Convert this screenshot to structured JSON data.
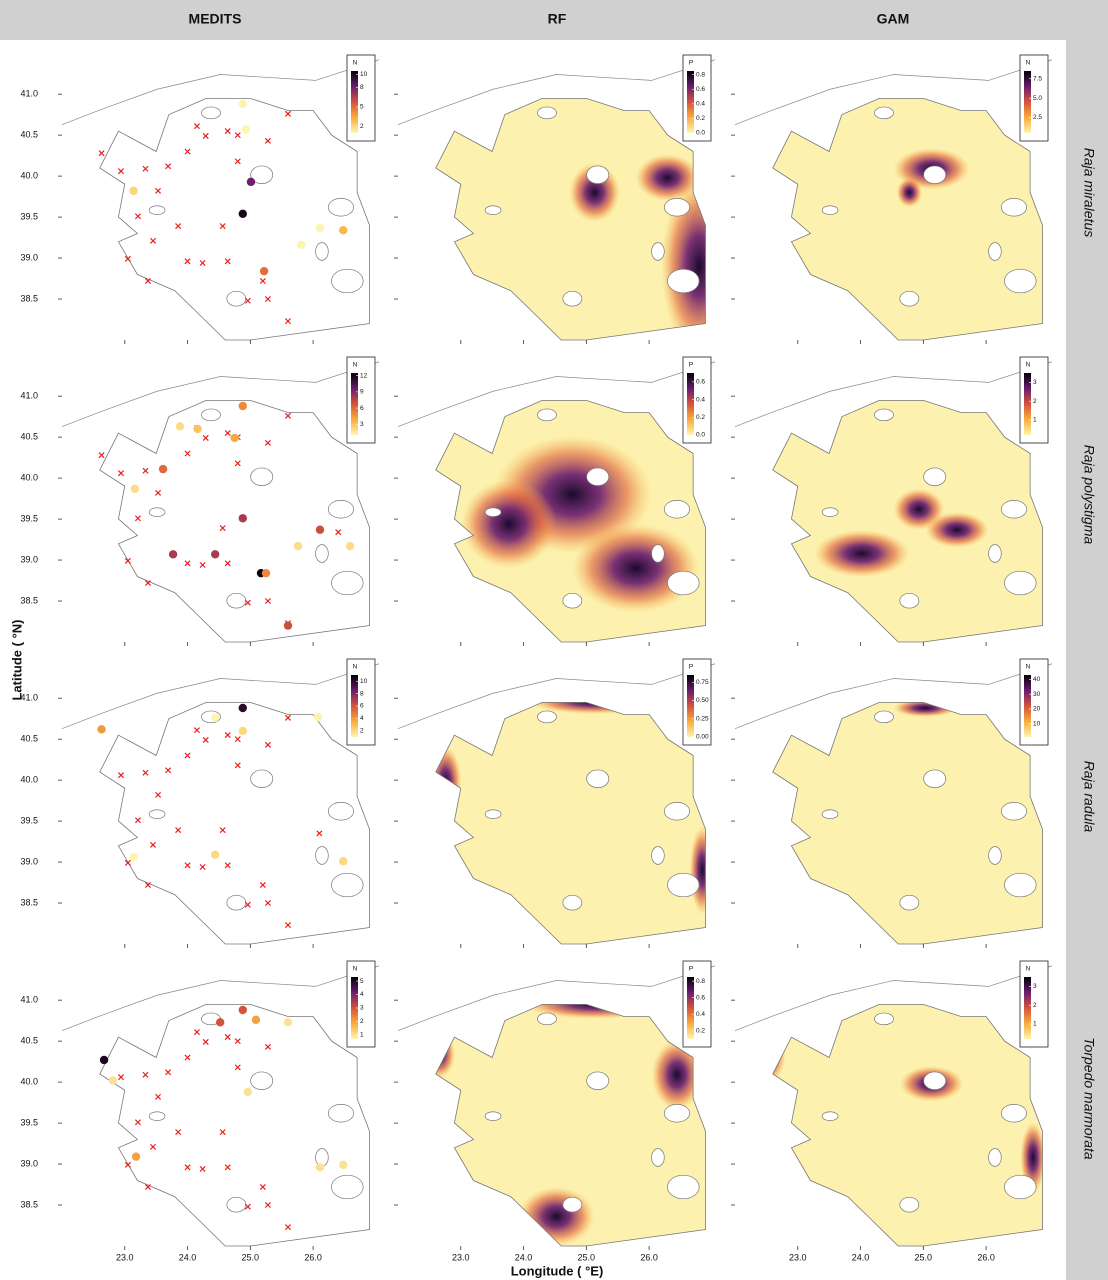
{
  "columns": [
    "MEDITS",
    "RF",
    "GAM"
  ],
  "x_label": "Longitude ( °E)",
  "y_label": "Latitude ( °N)",
  "xlim": [
    22.0,
    27.05
  ],
  "xticks": [
    {
      "value": 23,
      "label": "23.0"
    },
    {
      "value": 24,
      "label": "24.0"
    },
    {
      "value": 25,
      "label": "25.0"
    },
    {
      "value": 26,
      "label": "26.0"
    }
  ],
  "ylim": [
    38.0,
    41.6
  ],
  "yticks": [
    38.5,
    {
      "value": 39,
      "label": "39.0"
    },
    39.5,
    {
      "value": 40,
      "label": "40.0"
    },
    40.5,
    {
      "value": 41,
      "label": "41.0"
    }
  ],
  "palette": [
    "#fcf5b0",
    "#f9ac3c",
    "#d5533c",
    "#6a1c6e",
    "#000004"
  ],
  "absence_color": "#e8201b",
  "rows": [
    {
      "species": "Raja miraletus",
      "medits": {
        "legend": {
          "title": "N",
          "lim": [
            1,
            10.5
          ],
          "ticks": [
            2,
            5,
            8,
            10
          ]
        },
        "presence": {
          "lon": [
            24.88,
            25.01,
            25.22,
            24.88,
            24.93,
            25.81,
            26.11,
            26.48,
            23.14
          ],
          "lat": [
            39.54,
            39.93,
            38.84,
            40.88,
            40.57,
            39.16,
            39.37,
            39.34,
            39.82
          ],
          "n": [
            10,
            8,
            5,
            1,
            1,
            1,
            1,
            3,
            2
          ]
        },
        "absence": {
          "lon": [
            22.63,
            22.94,
            23.33,
            23.69,
            24.0,
            24.15,
            24.29,
            24.64,
            24.8,
            25.28,
            25.6,
            24.8,
            23.53,
            23.21,
            23.45,
            23.05,
            24.0,
            24.24,
            24.64,
            24.96,
            25.28,
            25.6,
            25.2,
            24.56,
            23.85,
            23.37
          ],
          "lat": [
            40.28,
            40.06,
            40.09,
            40.12,
            40.3,
            40.61,
            40.49,
            40.55,
            40.5,
            40.43,
            40.76,
            40.18,
            39.82,
            39.51,
            39.21,
            38.99,
            38.96,
            38.94,
            38.96,
            38.48,
            38.5,
            38.23,
            38.72,
            39.39,
            39.39,
            38.72
          ]
        }
      },
      "rf": {
        "legend": {
          "title": "P",
          "lim": [
            0,
            0.85
          ],
          "ticks": [
            {
              "value": 0,
              "label": "0.0"
            },
            0.2,
            0.4,
            0.6,
            0.8
          ]
        }
      },
      "gam": {
        "legend": {
          "title": "N",
          "lim": [
            0.5,
            8.5
          ],
          "ticks": [
            2.5,
            {
              "value": 5,
              "label": "5.0"
            },
            7.5
          ]
        }
      }
    },
    {
      "species": "Raja polystigma",
      "medits": {
        "legend": {
          "title": "N",
          "lim": [
            1,
            12.5
          ],
          "ticks": [
            3,
            6,
            9,
            12
          ]
        },
        "presence": {
          "lon": [
            24.88,
            23.88,
            24.16,
            24.75,
            23.61,
            24.88,
            26.11,
            23.77,
            24.44,
            25.17,
            25.25,
            25.6,
            25.76,
            26.59,
            23.16
          ],
          "lat": [
            40.88,
            40.63,
            40.6,
            40.49,
            40.11,
            39.51,
            39.37,
            39.07,
            39.07,
            38.84,
            38.84,
            38.2,
            39.17,
            39.17,
            39.87
          ],
          "n": [
            5,
            2,
            3,
            4,
            6,
            8,
            7,
            8,
            8,
            12,
            5,
            7,
            2,
            2,
            2
          ]
        },
        "absence": {
          "lon": [
            22.63,
            22.94,
            23.33,
            24.0,
            24.15,
            24.29,
            24.64,
            24.8,
            25.28,
            25.6,
            24.8,
            23.53,
            23.21,
            23.05,
            24.0,
            24.24,
            24.64,
            24.96,
            25.28,
            25.6,
            24.56,
            23.37,
            26.4
          ],
          "lat": [
            40.28,
            40.06,
            40.09,
            40.3,
            40.61,
            40.49,
            40.55,
            40.5,
            40.43,
            40.76,
            40.18,
            39.82,
            39.51,
            38.99,
            38.96,
            38.94,
            38.96,
            38.48,
            38.5,
            38.23,
            39.39,
            38.72,
            39.34
          ]
        }
      },
      "rf": {
        "legend": {
          "title": "P",
          "lim": [
            0,
            0.7
          ],
          "ticks": [
            {
              "value": 0,
              "label": "0.0"
            },
            0.2,
            0.4,
            0.6
          ]
        }
      },
      "gam": {
        "legend": {
          "title": "N",
          "lim": [
            0.2,
            3.5
          ],
          "ticks": [
            1,
            2,
            3
          ]
        }
      }
    },
    {
      "species": "Raja radula",
      "medits": {
        "legend": {
          "title": "N",
          "lim": [
            1,
            11
          ],
          "ticks": [
            2,
            4,
            6,
            8,
            10
          ]
        },
        "presence": {
          "lon": [
            24.88,
            22.63,
            26.08,
            24.88,
            24.44,
            26.48,
            24.44,
            23.14
          ],
          "lat": [
            40.88,
            40.62,
            40.77,
            40.6,
            40.76,
            39.01,
            39.09,
            39.06
          ],
          "n": [
            10,
            4,
            1,
            2,
            1,
            2,
            2,
            1
          ]
        },
        "absence": {
          "lon": [
            22.94,
            23.33,
            23.69,
            24.0,
            24.15,
            24.29,
            24.64,
            24.8,
            25.28,
            25.6,
            24.8,
            23.53,
            23.21,
            23.45,
            23.05,
            24.0,
            24.24,
            24.64,
            24.96,
            25.28,
            25.6,
            25.2,
            24.56,
            23.85,
            23.37,
            26.1
          ],
          "lat": [
            40.06,
            40.09,
            40.12,
            40.3,
            40.61,
            40.49,
            40.55,
            40.5,
            40.43,
            40.76,
            40.18,
            39.82,
            39.51,
            39.21,
            38.99,
            38.96,
            38.94,
            38.96,
            38.48,
            38.5,
            38.23,
            38.72,
            39.39,
            39.39,
            38.72,
            39.35
          ]
        }
      },
      "rf": {
        "legend": {
          "title": "P",
          "lim": [
            0,
            0.85
          ],
          "ticks": [
            {
              "value": 0,
              "label": "0.00"
            },
            0.25,
            {
              "value": 0.5,
              "label": "0.50"
            },
            0.75
          ]
        }
      },
      "gam": {
        "legend": {
          "title": "N",
          "lim": [
            1,
            43
          ],
          "ticks": [
            10,
            20,
            30,
            40
          ]
        }
      }
    },
    {
      "species": "Torpedo marmorata",
      "medits": {
        "legend": {
          "title": "N",
          "lim": [
            0.7,
            5.3
          ],
          "ticks": [
            1,
            2,
            3,
            4,
            5
          ]
        },
        "presence": {
          "lon": [
            22.67,
            24.88,
            24.52,
            25.09,
            25.6,
            22.81,
            24.96,
            26.11,
            26.48,
            23.18
          ],
          "lat": [
            40.27,
            40.88,
            40.73,
            40.76,
            40.73,
            40.02,
            39.88,
            38.96,
            38.99,
            39.09
          ],
          "n": [
            5,
            3,
            3,
            2,
            1,
            1,
            1,
            1,
            1,
            2
          ]
        },
        "absence": {
          "lon": [
            22.94,
            23.33,
            23.69,
            24.0,
            24.15,
            24.29,
            24.64,
            24.8,
            25.28,
            24.8,
            23.53,
            23.21,
            23.45,
            23.05,
            24.0,
            24.24,
            24.64,
            24.96,
            25.28,
            25.6,
            25.2,
            24.56,
            23.85,
            23.37
          ],
          "lat": [
            40.06,
            40.09,
            40.12,
            40.3,
            40.61,
            40.49,
            40.55,
            40.5,
            40.43,
            40.18,
            39.82,
            39.51,
            39.21,
            38.99,
            38.96,
            38.94,
            38.96,
            38.48,
            38.5,
            38.23,
            38.72,
            39.39,
            39.39,
            38.72
          ]
        }
      },
      "rf": {
        "legend": {
          "title": "P",
          "lim": [
            0.1,
            0.85
          ],
          "ticks": [
            0.2,
            0.4,
            0.6,
            0.8
          ]
        }
      },
      "gam": {
        "legend": {
          "title": "N",
          "lim": [
            0.2,
            3.5
          ],
          "ticks": [
            1,
            2,
            3
          ]
        }
      }
    }
  ]
}
